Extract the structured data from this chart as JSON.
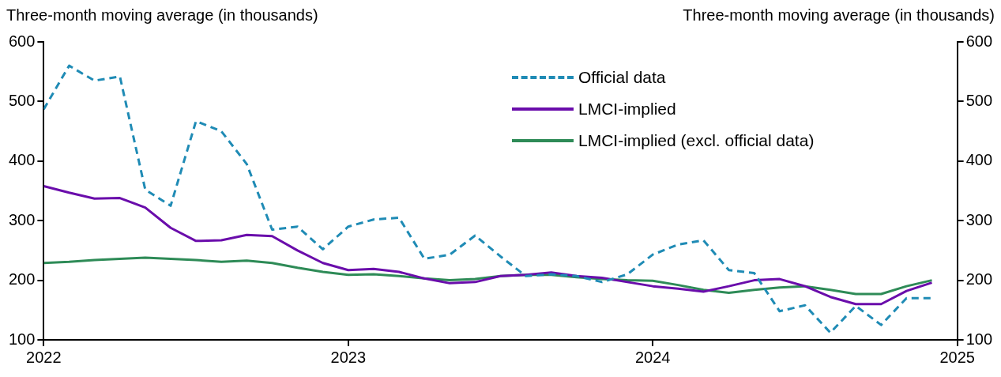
{
  "chart_data": {
    "type": "line",
    "ylabel": "Three-month moving average (in thousands)",
    "y2label": "Three-month moving average (in thousands)",
    "x": [
      "2022-01",
      "2022-02",
      "2022-03",
      "2022-04",
      "2022-05",
      "2022-06",
      "2022-07",
      "2022-08",
      "2022-09",
      "2022-10",
      "2022-11",
      "2022-12",
      "2023-01",
      "2023-02",
      "2023-03",
      "2023-04",
      "2023-05",
      "2023-06",
      "2023-07",
      "2023-08",
      "2023-09",
      "2023-10",
      "2023-11",
      "2023-12",
      "2024-01",
      "2024-02",
      "2024-03",
      "2024-04",
      "2024-05",
      "2024-06",
      "2024-07",
      "2024-08",
      "2024-09",
      "2024-10",
      "2024-11",
      "2024-12"
    ],
    "series": [
      {
        "name": "Official data",
        "color": "#1f8bb5",
        "line_style": "dashed",
        "values": [
          487,
          560,
          535,
          542,
          352,
          325,
          467,
          450,
          395,
          285,
          290,
          252,
          290,
          302,
          305,
          236,
          243,
          275,
          240,
          207,
          210,
          207,
          197,
          210,
          243,
          260,
          267,
          217,
          212,
          148,
          158,
          112,
          157,
          125,
          170,
          170
        ]
      },
      {
        "name": "LMCI-implied",
        "color": "#6a0dab",
        "line_style": "solid",
        "values": [
          358,
          347,
          337,
          338,
          322,
          288,
          266,
          267,
          276,
          274,
          250,
          229,
          217,
          219,
          214,
          203,
          195,
          197,
          207,
          209,
          213,
          207,
          204,
          197,
          190,
          186,
          181,
          190,
          200,
          202,
          190,
          172,
          160,
          160,
          182,
          196
        ]
      },
      {
        "name": "LMCI-implied (excl. official data)",
        "color": "#2e8b57",
        "line_style": "solid",
        "values": [
          229,
          231,
          234,
          236,
          238,
          236,
          234,
          231,
          233,
          229,
          221,
          214,
          209,
          210,
          207,
          203,
          200,
          202,
          207,
          209,
          209,
          205,
          202,
          200,
          199,
          192,
          184,
          179,
          184,
          188,
          190,
          184,
          177,
          177,
          190,
          200
        ]
      }
    ],
    "xlim": [
      "2022",
      "2025"
    ],
    "xticks": [
      "2022",
      "2023",
      "2024",
      "2025"
    ],
    "ylim": [
      100,
      600
    ],
    "yticks": [
      100,
      200,
      300,
      400,
      500,
      600
    ],
    "y2lim": [
      100,
      600
    ],
    "y2ticks": [
      100,
      200,
      300,
      400,
      500,
      600
    ],
    "grid": false,
    "legend": "top right",
    "marker": "none"
  }
}
